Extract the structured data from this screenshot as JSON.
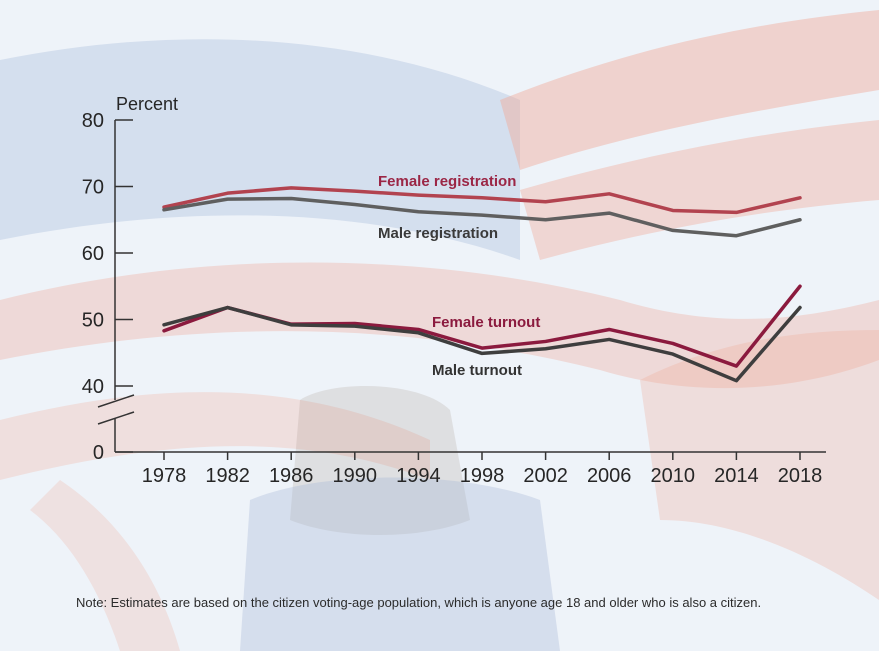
{
  "chart_data": {
    "type": "line",
    "ylabel": "Percent",
    "ylim": [
      0,
      80
    ],
    "y_ticks": [
      0,
      40,
      50,
      60,
      70,
      80
    ],
    "y_break": [
      0,
      40
    ],
    "x": [
      1978,
      1982,
      1986,
      1990,
      1994,
      1998,
      2002,
      2006,
      2010,
      2014,
      2018
    ],
    "series": [
      {
        "name": "Female registration",
        "color": "#b2434f",
        "width": 3.5,
        "values": [
          66.9,
          69.0,
          69.8,
          69.3,
          68.7,
          68.3,
          67.7,
          68.9,
          66.4,
          66.1,
          68.3
        ]
      },
      {
        "name": "Male registration",
        "color": "#5f5f5f",
        "width": 3.5,
        "values": [
          66.5,
          68.1,
          68.2,
          67.3,
          66.2,
          65.7,
          65.0,
          66.0,
          63.4,
          62.6,
          65.0
        ]
      },
      {
        "name": "Female turnout",
        "color": "#8b1a3e",
        "width": 3.5,
        "values": [
          48.3,
          51.8,
          49.3,
          49.4,
          48.5,
          45.7,
          46.7,
          48.5,
          46.4,
          43.0,
          55.0
        ]
      },
      {
        "name": "Male turnout",
        "color": "#3e3e3e",
        "width": 3.5,
        "values": [
          49.2,
          51.8,
          49.2,
          49.0,
          48.0,
          44.9,
          45.6,
          47.0,
          44.8,
          40.8,
          51.8
        ]
      }
    ],
    "grid": false,
    "legend": "inline labels"
  },
  "note": "Note: Estimates are based on the citizen voting-age population, which is anyone age 18 and older who is also a citizen.",
  "background": {
    "flag_red": "#e8876f",
    "flag_blue": "#9fb4d6",
    "sky": "#e7eef7"
  }
}
